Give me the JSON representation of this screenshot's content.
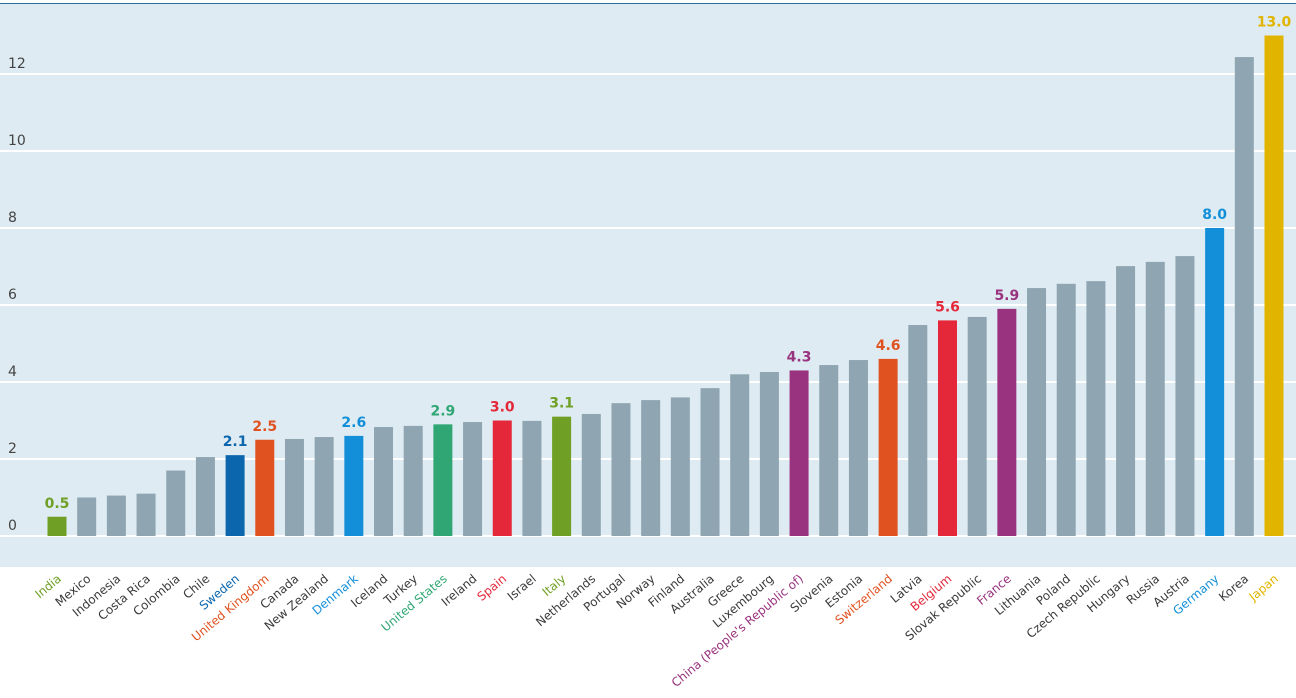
{
  "chart_data": {
    "type": "bar",
    "title": "",
    "xlabel": "",
    "ylabel": "",
    "ylim": [
      0,
      13
    ],
    "yticks": [
      0,
      2,
      4,
      6,
      8,
      10,
      12
    ],
    "grid": true,
    "default_color": "#8fa5b1",
    "categories": [
      "India",
      "Mexico",
      "Indonesia",
      "Costa Rica",
      "Colombia",
      "Chile",
      "Sweden",
      "United Kingdom",
      "Canada",
      "New Zealand",
      "Denmark",
      "Iceland",
      "Turkey",
      "United States",
      "Ireland",
      "Spain",
      "Israel",
      "Italy",
      "Netherlands",
      "Portugal",
      "Norway",
      "Finland",
      "Australia",
      "Greece",
      "Luxembourg",
      "China (People's Republic of)",
      "Slovenia",
      "Estonia",
      "Switzerland",
      "Latvia",
      "Belgium",
      "Slovak Republic",
      "France",
      "Lithuania",
      "Poland",
      "Czech Republic",
      "Hungary",
      "Russia",
      "Austria",
      "Germany",
      "Korea",
      "Japan"
    ],
    "values": [
      0.5,
      1.0,
      1.05,
      1.1,
      1.7,
      2.05,
      2.1,
      2.5,
      2.52,
      2.57,
      2.6,
      2.83,
      2.86,
      2.9,
      2.96,
      3.0,
      2.99,
      3.1,
      3.17,
      3.45,
      3.53,
      3.6,
      3.84,
      4.2,
      4.26,
      4.3,
      4.44,
      4.57,
      4.6,
      5.48,
      5.6,
      5.69,
      5.9,
      6.44,
      6.55,
      6.62,
      7.01,
      7.12,
      7.27,
      8.0,
      12.44,
      13.0
    ],
    "highlights": [
      {
        "category": "India",
        "label": "0.5",
        "color": "#6fa025"
      },
      {
        "category": "Sweden",
        "label": "2.1",
        "color": "#0c66ad"
      },
      {
        "category": "United Kingdom",
        "label": "2.5",
        "color": "#e05220"
      },
      {
        "category": "Denmark",
        "label": "2.6",
        "color": "#138fd9"
      },
      {
        "category": "United States",
        "label": "2.9",
        "color": "#2fa673"
      },
      {
        "category": "Spain",
        "label": "3.0",
        "color": "#e4283a"
      },
      {
        "category": "Italy",
        "label": "3.1",
        "color": "#6fa025"
      },
      {
        "category": "China (People's Republic of)",
        "label": "4.3",
        "color": "#99337f"
      },
      {
        "category": "Switzerland",
        "label": "4.6",
        "color": "#e05220"
      },
      {
        "category": "Belgium",
        "label": "5.6",
        "color": "#e4283a"
      },
      {
        "category": "France",
        "label": "5.9",
        "color": "#99337f"
      },
      {
        "category": "Germany",
        "label": "8.0",
        "color": "#138fd9"
      },
      {
        "category": "Japan",
        "label": "13.0",
        "color": "#e1b400"
      }
    ]
  }
}
